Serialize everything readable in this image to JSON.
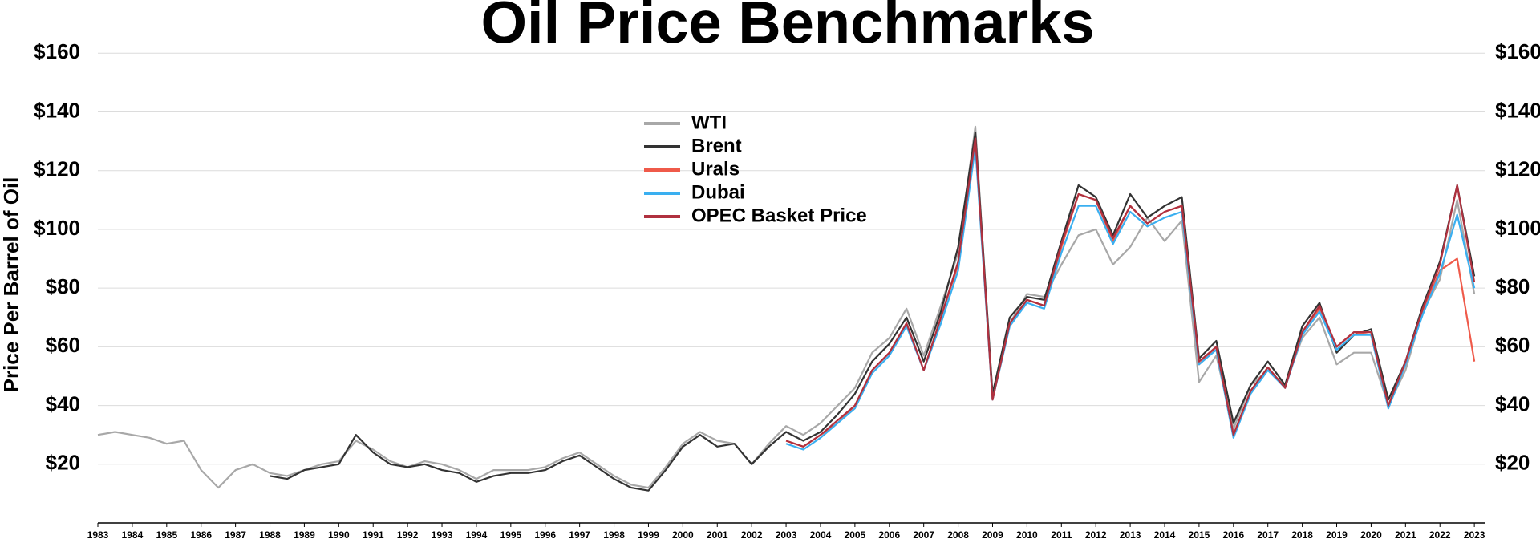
{
  "chart_data": {
    "type": "line",
    "title": "Oil Price Benchmarks",
    "y_label": "Price Per Barrel of Oil",
    "x": [
      1983,
      1983.5,
      1984,
      1984.5,
      1985,
      1985.5,
      1986,
      1986.5,
      1987,
      1987.5,
      1988,
      1988.5,
      1989,
      1989.5,
      1990,
      1990.5,
      1991,
      1991.5,
      1992,
      1992.5,
      1993,
      1993.5,
      1994,
      1994.5,
      1995,
      1995.5,
      1996,
      1996.5,
      1997,
      1997.5,
      1998,
      1998.5,
      1999,
      1999.5,
      2000,
      2000.5,
      2001,
      2001.5,
      2002,
      2002.5,
      2003,
      2003.5,
      2004,
      2004.5,
      2005,
      2005.5,
      2006,
      2006.5,
      2007,
      2007.5,
      2008,
      2008.5,
      2009,
      2009.5,
      2010,
      2010.5,
      2011,
      2011.5,
      2012,
      2012.5,
      2013,
      2013.5,
      2014,
      2014.5,
      2015,
      2015.5,
      2016,
      2016.5,
      2017,
      2017.5,
      2018,
      2018.5,
      2019,
      2019.5,
      2020,
      2020.5,
      2021,
      2021.5,
      2022,
      2022.5,
      2023
    ],
    "series": [
      {
        "name": "WTI",
        "color": "#a8a8a8",
        "values": [
          30,
          31,
          30,
          29,
          27,
          28,
          18,
          12,
          18,
          20,
          17,
          16,
          18,
          20,
          21,
          28,
          25,
          21,
          19,
          21,
          20,
          18,
          15,
          18,
          18,
          18,
          19,
          22,
          24,
          20,
          16,
          13,
          12,
          19,
          27,
          31,
          28,
          27,
          20,
          27,
          33,
          30,
          34,
          40,
          46,
          58,
          63,
          73,
          57,
          74,
          92,
          135,
          42,
          68,
          78,
          77,
          88,
          98,
          100,
          88,
          94,
          104,
          96,
          103,
          48,
          57,
          32,
          47,
          52,
          47,
          63,
          70,
          54,
          58,
          58,
          40,
          52,
          72,
          83,
          110,
          78
        ]
      },
      {
        "name": "Brent",
        "color": "#333333",
        "values": [
          null,
          null,
          null,
          null,
          null,
          null,
          null,
          null,
          null,
          null,
          16,
          15,
          18,
          19,
          20,
          30,
          24,
          20,
          19,
          20,
          18,
          17,
          14,
          16,
          17,
          17,
          18,
          21,
          23,
          19,
          15,
          12,
          11,
          18,
          26,
          30,
          26,
          27,
          20,
          26,
          31,
          28,
          31,
          37,
          44,
          55,
          61,
          70,
          55,
          72,
          94,
          133,
          44,
          70,
          77,
          76,
          96,
          115,
          111,
          98,
          112,
          104,
          108,
          111,
          56,
          62,
          34,
          47,
          55,
          47,
          67,
          75,
          58,
          64,
          66,
          42,
          55,
          74,
          89,
          115,
          84
        ]
      },
      {
        "name": "Urals",
        "color": "#ef5a4a",
        "values": [
          null,
          null,
          null,
          null,
          null,
          null,
          null,
          null,
          null,
          null,
          null,
          null,
          null,
          null,
          null,
          null,
          null,
          null,
          null,
          null,
          null,
          null,
          null,
          null,
          null,
          null,
          null,
          null,
          null,
          null,
          null,
          null,
          null,
          null,
          null,
          null,
          null,
          null,
          null,
          null,
          28,
          26,
          30,
          34,
          40,
          52,
          58,
          68,
          52,
          70,
          88,
          130,
          42,
          68,
          76,
          74,
          94,
          112,
          110,
          96,
          108,
          102,
          106,
          108,
          54,
          60,
          30,
          45,
          53,
          46,
          65,
          73,
          60,
          65,
          64,
          40,
          54,
          72,
          86,
          90,
          55
        ]
      },
      {
        "name": "Dubai",
        "color": "#3aaff0",
        "values": [
          null,
          null,
          null,
          null,
          null,
          null,
          null,
          null,
          null,
          null,
          null,
          null,
          null,
          null,
          null,
          null,
          null,
          null,
          null,
          null,
          null,
          null,
          null,
          null,
          null,
          null,
          null,
          null,
          null,
          null,
          null,
          null,
          null,
          null,
          null,
          null,
          null,
          null,
          null,
          null,
          27,
          25,
          29,
          34,
          39,
          51,
          57,
          67,
          52,
          68,
          86,
          128,
          42,
          67,
          75,
          73,
          92,
          108,
          108,
          95,
          106,
          101,
          104,
          106,
          54,
          59,
          29,
          44,
          52,
          46,
          64,
          72,
          59,
          64,
          64,
          39,
          54,
          71,
          85,
          105,
          80
        ]
      },
      {
        "name": "OPEC Basket Price",
        "color": "#b0313f",
        "values": [
          null,
          null,
          null,
          null,
          null,
          null,
          null,
          null,
          null,
          null,
          null,
          null,
          null,
          null,
          null,
          null,
          null,
          null,
          null,
          null,
          null,
          null,
          null,
          null,
          null,
          null,
          null,
          null,
          null,
          null,
          null,
          null,
          null,
          null,
          null,
          null,
          null,
          null,
          null,
          null,
          28,
          26,
          30,
          35,
          40,
          52,
          58,
          68,
          52,
          70,
          89,
          131,
          42,
          68,
          76,
          74,
          95,
          112,
          110,
          97,
          108,
          102,
          106,
          108,
          55,
          60,
          30,
          45,
          53,
          46,
          65,
          74,
          60,
          65,
          65,
          40,
          55,
          73,
          88,
          115,
          82
        ]
      }
    ],
    "xlim": [
      1983,
      2023.3
    ],
    "xticks": [
      1983,
      1984,
      1985,
      1986,
      1987,
      1988,
      1989,
      1990,
      1991,
      1992,
      1993,
      1994,
      1995,
      1996,
      1997,
      1998,
      1999,
      2000,
      2001,
      2002,
      2003,
      2004,
      2005,
      2006,
      2007,
      2008,
      2009,
      2010,
      2011,
      2012,
      2013,
      2014,
      2015,
      2016,
      2017,
      2018,
      2019,
      2020,
      2021,
      2022,
      2023
    ],
    "ylim": [
      0,
      165
    ],
    "yticks": [
      {
        "value": 20,
        "label": "$20"
      },
      {
        "value": 40,
        "label": "$40"
      },
      {
        "value": 60,
        "label": "$60"
      },
      {
        "value": 80,
        "label": "$80"
      },
      {
        "value": 100,
        "label": "$100"
      },
      {
        "value": 120,
        "label": "$120"
      },
      {
        "value": 140,
        "label": "$140"
      },
      {
        "value": 160,
        "label": "$160"
      }
    ],
    "grid": true,
    "legend": "top-center"
  }
}
